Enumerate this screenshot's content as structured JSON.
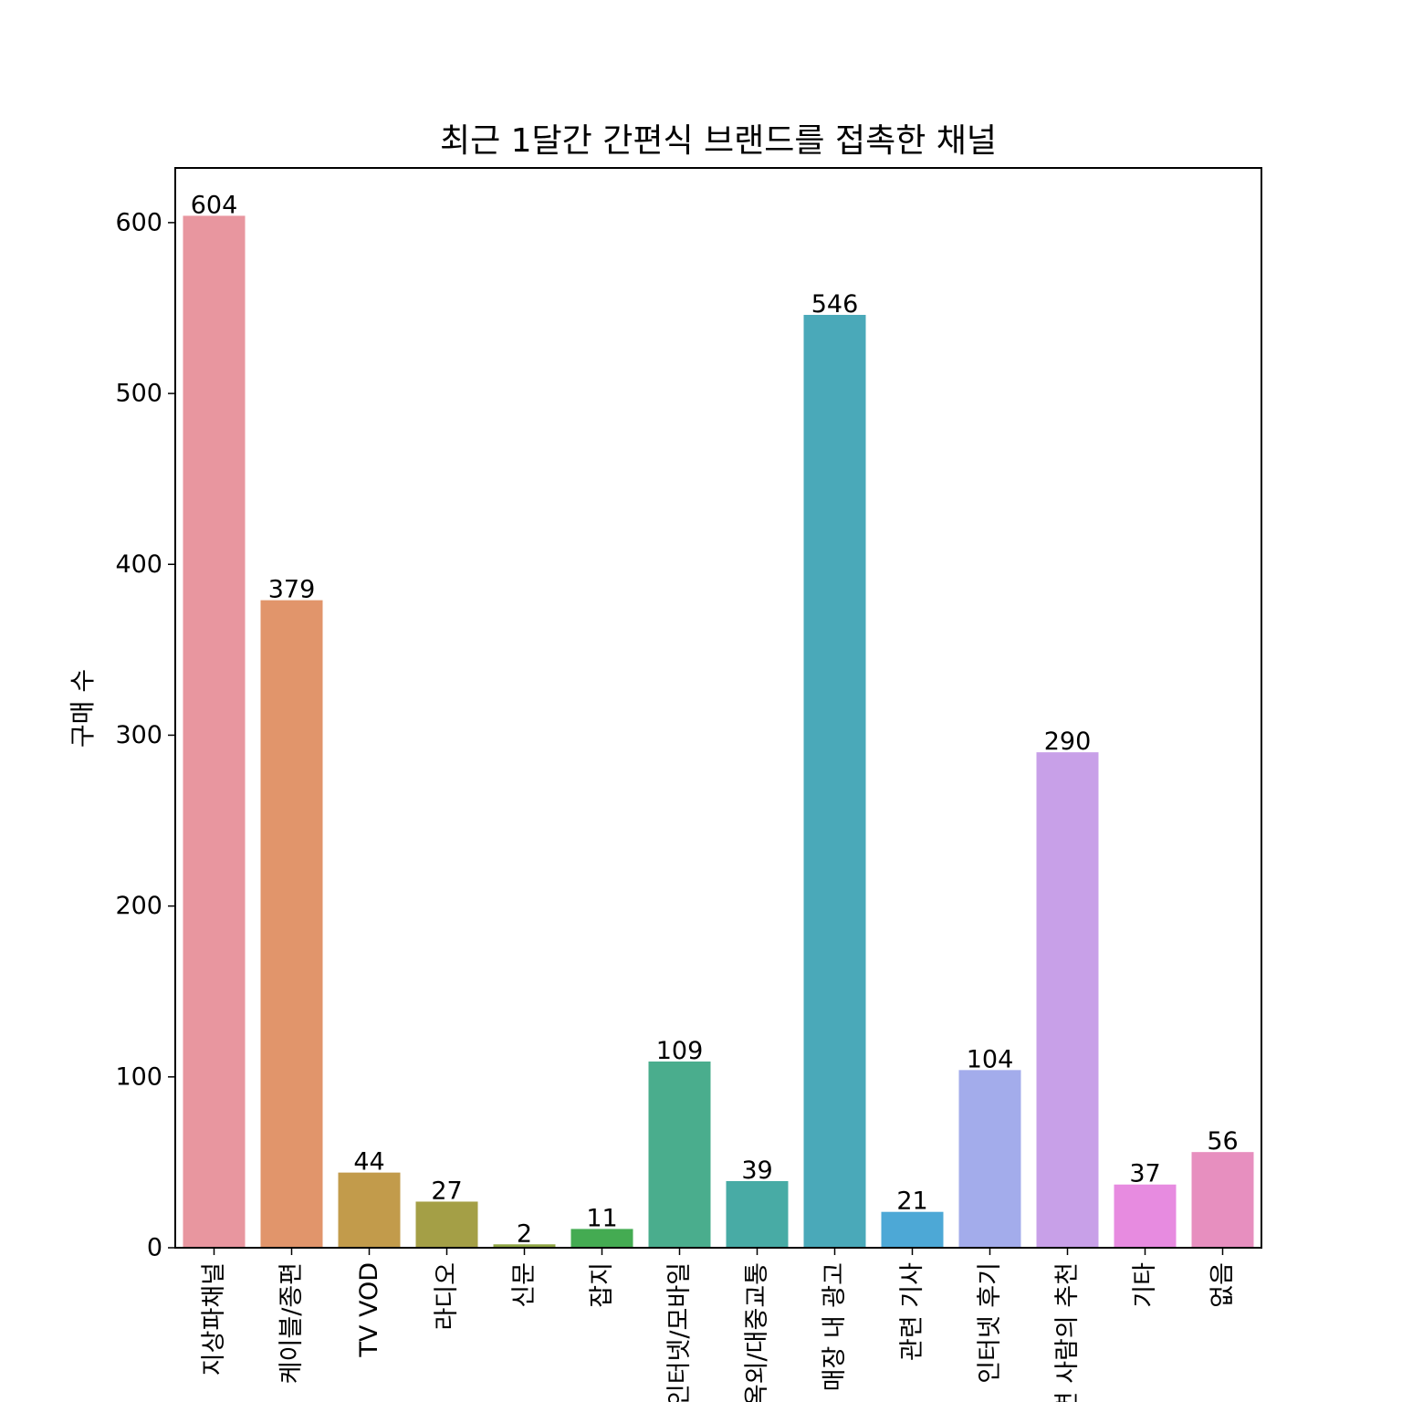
{
  "chart_data": {
    "type": "bar",
    "title": "최근 1달간 간편식 브랜드를 접촉한 채널",
    "xlabel": "",
    "ylabel": "구매 수",
    "ylim": [
      0,
      632
    ],
    "yticks": [
      0,
      100,
      200,
      300,
      400,
      500,
      600
    ],
    "grid": false,
    "legend": "none",
    "categories": [
      "지상파채널",
      "케이블/종편",
      "TV VOD",
      "라디오",
      "신문",
      "잡지",
      "인터넷/모바일",
      "옥외/대중교통",
      "매장 내 광고",
      "관련 기사",
      "인터넷 후기",
      "주변 사람의 추천",
      "기타",
      "없음"
    ],
    "values": [
      604,
      379,
      44,
      27,
      2,
      11,
      109,
      39,
      546,
      21,
      104,
      290,
      37,
      56
    ],
    "colors": [
      "#e8969f",
      "#e1956b",
      "#c29b4b",
      "#a49f46",
      "#8fa544",
      "#44ab52",
      "#4aad8d",
      "#48aba5",
      "#4aa9b9",
      "#4da8d6",
      "#a3aceb",
      "#c8a0e8",
      "#e78be0",
      "#e78fbf"
    ]
  }
}
